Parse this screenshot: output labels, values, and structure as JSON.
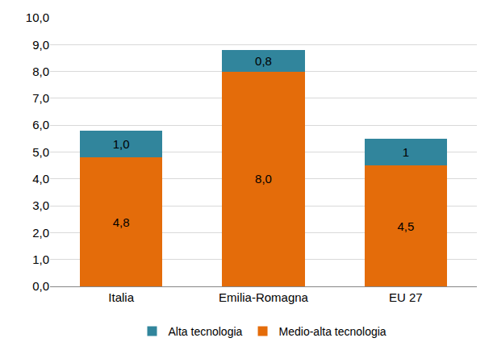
{
  "chart_data": {
    "type": "bar",
    "stacked": true,
    "grid": true,
    "legend": "bottom",
    "data_labels": true,
    "categories": [
      "Italia",
      "Emilia-Romagna",
      "EU 27"
    ],
    "series": [
      {
        "name": "Medio-alta tecnologia",
        "color": "#E46C0A",
        "values": [
          4.8,
          8.0,
          4.5
        ],
        "value_labels": [
          "4,8",
          "8,0",
          "4,5"
        ]
      },
      {
        "name": "Alta tecnologia",
        "color": "#31859C",
        "values": [
          1.0,
          0.8,
          1
        ],
        "value_labels": [
          "1,0",
          "0,8",
          "1"
        ]
      }
    ],
    "ylim": [
      0,
      10
    ],
    "yticks": [
      {
        "value": 0,
        "label": "0,0"
      },
      {
        "value": 1,
        "label": "1,0"
      },
      {
        "value": 2,
        "label": "2,0"
      },
      {
        "value": 3,
        "label": "3,0"
      },
      {
        "value": 4,
        "label": "4,0"
      },
      {
        "value": 5,
        "label": "5,0"
      },
      {
        "value": 6,
        "label": "6,0"
      },
      {
        "value": 7,
        "label": "7,0"
      },
      {
        "value": 8,
        "label": "8,0"
      },
      {
        "value": 9,
        "label": "9,0"
      },
      {
        "value": 10,
        "label": "10,0"
      }
    ]
  }
}
